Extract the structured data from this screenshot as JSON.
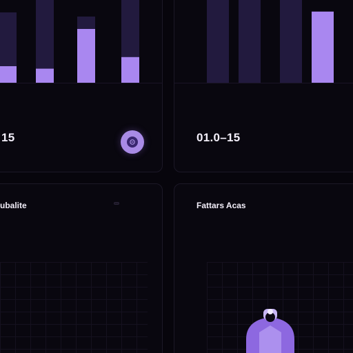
{
  "theme": {
    "background": "#07050c",
    "panel": "#09070f",
    "accent": "#a987f0",
    "accent_dark": "#221a3e"
  },
  "top_left": {
    "chart_data": {
      "type": "bar",
      "categories": [
        "",
        "",
        "",
        ""
      ],
      "series": [
        {
          "values": [
            0.85,
            1,
            0.8,
            1
          ]
        },
        {
          "values": [
            0.2,
            0.17,
            0.65,
            0.31
          ]
        }
      ],
      "tick_labels": [
        "",
        "",
        "",
        ""
      ]
    }
  },
  "top_right": {
    "y_ticks": [
      "",
      "",
      ""
    ],
    "chart_data": {
      "type": "bar",
      "categories": [
        "",
        "",
        "",
        ""
      ],
      "series": [
        {
          "values": [
            1,
            1,
            1,
            0.86
          ]
        },
        {
          "values": [
            0,
            0,
            0,
            0.86
          ]
        }
      ],
      "tick_labels": [
        "",
        "",
        "",
        ""
      ]
    }
  },
  "stat_left": {
    "value": "15",
    "caption": ""
  },
  "stat_right": {
    "value": "01.0–15",
    "caption": ""
  },
  "panel_bl": {
    "title": "ubalite",
    "subtitle": "",
    "badge": "",
    "line1": "",
    "line2": ""
  },
  "panel_br": {
    "title": "Fattars Acas",
    "subtitle": "",
    "line1": "",
    "line2": "",
    "y_ticks": [
      "",
      "",
      "",
      "",
      ""
    ]
  }
}
